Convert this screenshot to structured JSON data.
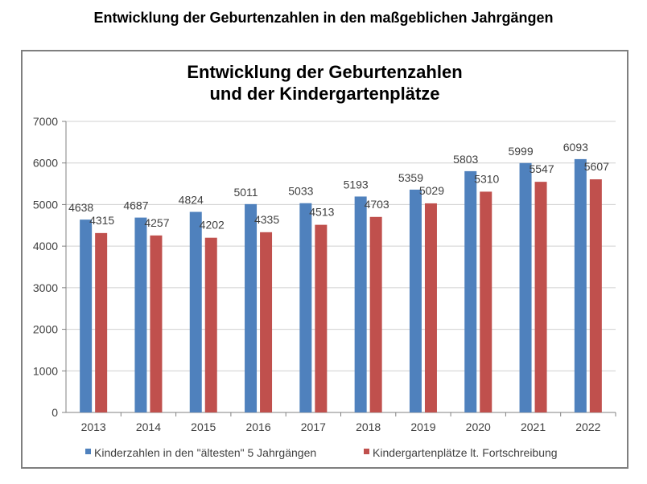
{
  "page_title": "Entwicklung der Geburtenzahlen in den maßgeblichen Jahrgängen",
  "chart_data": {
    "type": "bar",
    "title_lines": [
      "Entwicklung der Geburtenzahlen",
      "und der Kindergartenplätze"
    ],
    "xlabel": "",
    "ylabel": "",
    "categories": [
      "2013",
      "2014",
      "2015",
      "2016",
      "2017",
      "2018",
      "2019",
      "2020",
      "2021",
      "2022"
    ],
    "ylim": [
      0,
      7000
    ],
    "yticks": [
      0,
      1000,
      2000,
      3000,
      4000,
      5000,
      6000,
      7000
    ],
    "grid": true,
    "legend_position": "bottom",
    "series": [
      {
        "name": "Kinderzahlen in den \"ältesten\" 5 Jahrgängen",
        "color": "#4f81bd",
        "values": [
          4638,
          4687,
          4824,
          5011,
          5033,
          5193,
          5359,
          5803,
          5999,
          6093
        ]
      },
      {
        "name": "Kindergartenplätze lt. Fortschreibung",
        "color": "#c0504d",
        "values": [
          4315,
          4257,
          4202,
          4335,
          4513,
          4703,
          5029,
          5310,
          5547,
          5607
        ]
      }
    ]
  }
}
